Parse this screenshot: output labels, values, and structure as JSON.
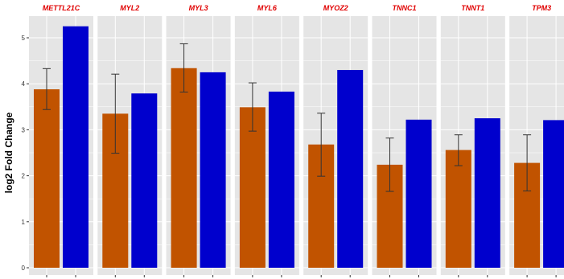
{
  "chart_data": {
    "type": "bar",
    "title": "",
    "xlabel": "",
    "ylabel": "log2 Fold Change",
    "ylim": [
      0,
      5.5
    ],
    "yticks": [
      0,
      1,
      2,
      3,
      4,
      5
    ],
    "grid": true,
    "facets": [
      "METTL21C",
      "MYL2",
      "MYL3",
      "MYL6",
      "MYOZ2",
      "TNNC1",
      "TNNT1",
      "TPM3"
    ],
    "series": [
      {
        "color": "#c15300",
        "values": [
          3.88,
          3.35,
          4.34,
          3.49,
          2.68,
          2.24,
          2.56,
          2.28
        ],
        "error_low": [
          3.44,
          2.49,
          3.82,
          2.97,
          1.99,
          1.66,
          2.22,
          1.67
        ],
        "error_high": [
          4.33,
          4.21,
          4.87,
          4.02,
          3.36,
          2.82,
          2.89,
          2.89
        ]
      },
      {
        "color": "#0000cd",
        "values": [
          5.25,
          3.79,
          4.25,
          3.83,
          4.3,
          3.22,
          3.25,
          3.21
        ]
      }
    ],
    "strip_text_color": "#e00000",
    "panel_background": "#e5e5e5",
    "gridline_color": "#ffffff"
  }
}
